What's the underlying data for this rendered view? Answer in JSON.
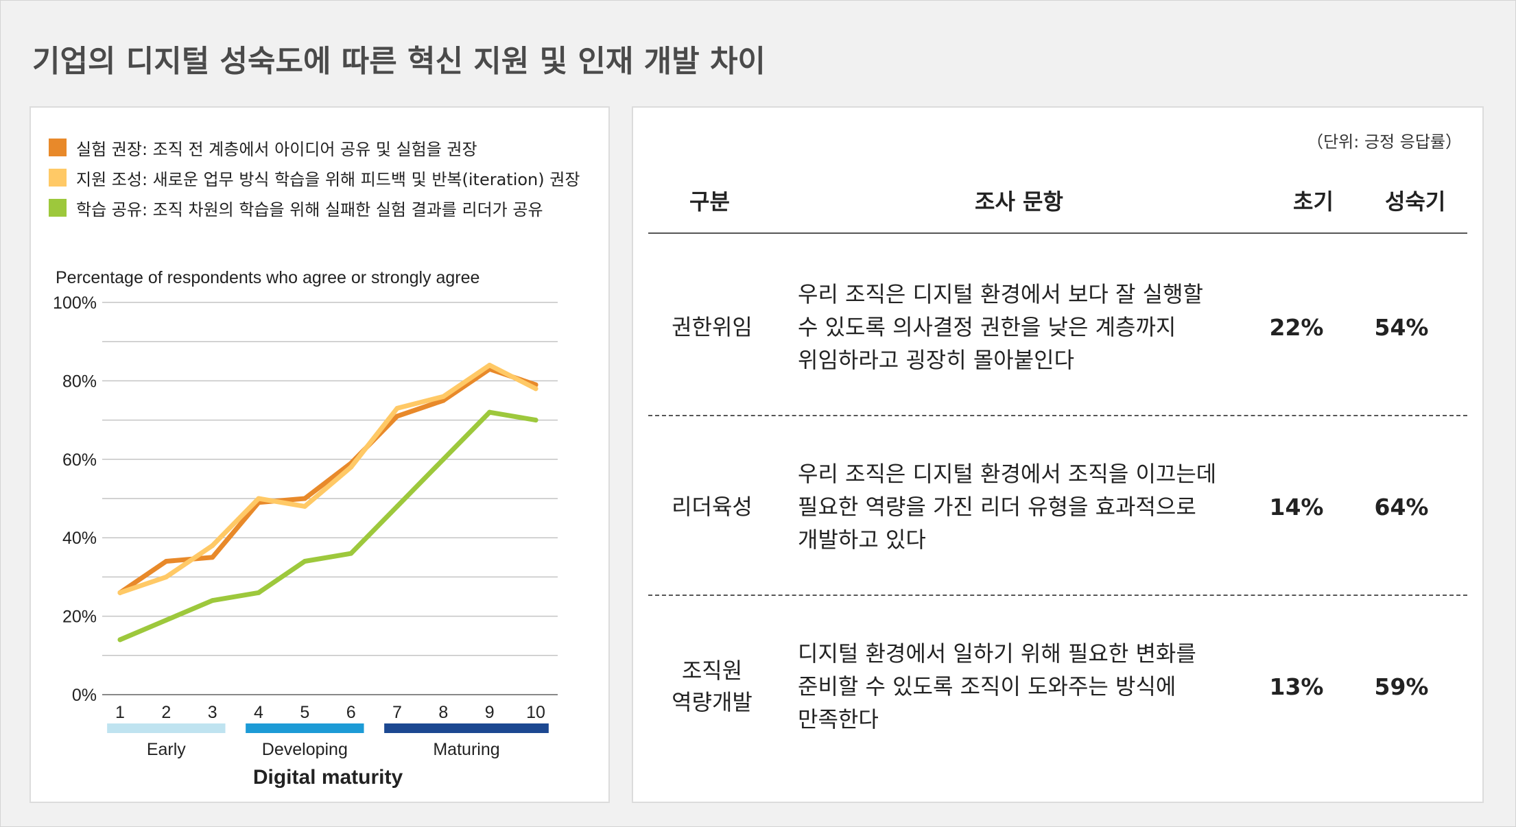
{
  "title": "기업의 디지털 성숙도에 따른 혁신 지원 및 인재 개발 차이",
  "chart_data": {
    "type": "line",
    "y_caption": "Percentage of respondents who agree or strongly agree",
    "xlabel": "Digital maturity",
    "x": [
      1,
      2,
      3,
      4,
      5,
      6,
      7,
      8,
      9,
      10
    ],
    "x_tick_labels": [
      "1",
      "2",
      "3",
      "4",
      "5",
      "6",
      "7",
      "8",
      "9",
      "10"
    ],
    "ylim": [
      0,
      100
    ],
    "y_ticks": [
      0,
      20,
      40,
      60,
      80,
      100
    ],
    "y_tick_labels": [
      "0%",
      "20%",
      "40%",
      "60%",
      "80%",
      "100%"
    ],
    "grid": true,
    "legend_position": "top-left",
    "maturity_groups": [
      {
        "label": "Early",
        "from": 1,
        "to": 3,
        "color": "#bfe3f0"
      },
      {
        "label": "Developing",
        "from": 4,
        "to": 6,
        "color": "#1d9bd6"
      },
      {
        "label": "Maturing",
        "from": 7,
        "to": 10,
        "color": "#1c4891"
      }
    ],
    "series": [
      {
        "name": "학습 공유: 조직 차원의 학습을 위해 실패한 실험 결과를 리더가 공유",
        "color": "#9dc83c",
        "values": [
          14,
          19,
          24,
          26,
          34,
          36,
          48,
          60,
          72,
          70
        ]
      },
      {
        "name": "실험 권장: 조직 전 계층에서 아이디어 공유 및 실험을 권장",
        "color": "#e8892a",
        "values": [
          26,
          34,
          35,
          49,
          50,
          59,
          71,
          75,
          83,
          79
        ]
      },
      {
        "name": "지원 조성: 새로운 업무 방식 학습을 위해 피드백 및 반복(iteration) 권장",
        "color": "#ffc966",
        "values": [
          26,
          30,
          38,
          50,
          48,
          58,
          73,
          76,
          84,
          78
        ]
      }
    ],
    "legend_order": [
      1,
      2,
      0
    ]
  },
  "table": {
    "unit_note": "（단위:  긍정  응답률）",
    "headers": {
      "category": "구분",
      "question": "조사 문항",
      "early": "초기",
      "maturing": "성숙기"
    },
    "rows": [
      {
        "category_lines": [
          "권한위임"
        ],
        "question_lines": [
          "우리 조직은 디지털 환경에서 보다 잘 실행할",
          "수 있도록 의사결정 권한을 낮은 계층까지",
          "위임하라고 굉장히 몰아붙인다"
        ],
        "early": "22%",
        "maturing": "54%"
      },
      {
        "category_lines": [
          "리더육성"
        ],
        "question_lines": [
          "우리 조직은 디지털 환경에서 조직을 이끄는데",
          "필요한 역량을 가진 리더 유형을 효과적으로",
          "개발하고 있다"
        ],
        "early": "14%",
        "maturing": "64%"
      },
      {
        "category_lines": [
          "조직원",
          "역량개발"
        ],
        "question_lines": [
          "디지털 환경에서 일하기 위해 필요한 변화를",
          "준비할 수 있도록 조직이 도와주는 방식에",
          "만족한다"
        ],
        "early": "13%",
        "maturing": "59%"
      }
    ]
  }
}
